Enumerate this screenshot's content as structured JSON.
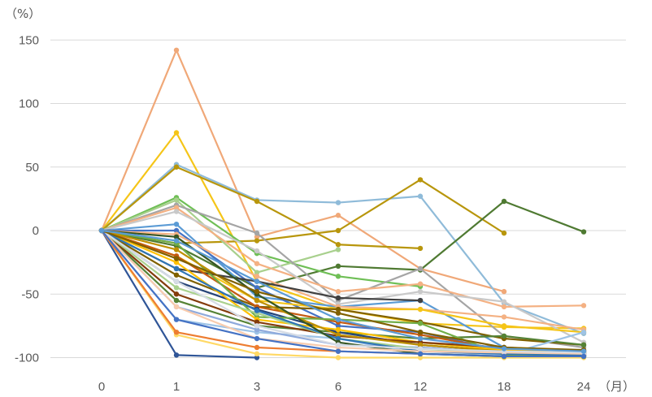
{
  "chart_data": {
    "type": "line",
    "title": "",
    "ylabel": "（%）",
    "xlabel": "（月）",
    "x": [
      "0",
      "1",
      "3",
      "6",
      "12",
      "18",
      "24"
    ],
    "yticks": [
      150,
      100,
      50,
      0,
      -50,
      -100
    ],
    "ylim": [
      -105,
      160
    ],
    "grid": true,
    "legend": "none",
    "series": [
      {
        "color": "#f0a878",
        "values": [
          0,
          142,
          -5,
          12,
          -30,
          -48,
          null
        ]
      },
      {
        "color": "#f5c518",
        "values": [
          0,
          77,
          -40,
          -62,
          -73,
          -76,
          -77
        ]
      },
      {
        "color": "#8fbbd9",
        "values": [
          0,
          52,
          24,
          22,
          27,
          -57,
          -81
        ]
      },
      {
        "color": "#b8960c",
        "values": [
          0,
          50,
          23,
          -11,
          -14,
          null,
          null
        ]
      },
      {
        "color": "#b8960c",
        "values": [
          0,
          -10,
          -8,
          0,
          40,
          -2,
          null
        ]
      },
      {
        "color": "#4f7a32",
        "values": [
          0,
          -12,
          -45,
          -28,
          -31,
          23,
          -1
        ]
      },
      {
        "color": "#6fbf56",
        "values": [
          0,
          26,
          -18,
          -36,
          -44,
          null,
          null
        ]
      },
      {
        "color": "#a8d08d",
        "values": [
          0,
          24,
          -33,
          -15,
          null,
          null,
          null
        ]
      },
      {
        "color": "#a5a5a5",
        "values": [
          0,
          20,
          -2,
          -55,
          -30,
          -83,
          -92
        ]
      },
      {
        "color": "#f4b183",
        "values": [
          0,
          18,
          -26,
          -48,
          -42,
          -60,
          -59
        ]
      },
      {
        "color": "#c9c9c9",
        "values": [
          0,
          15,
          -16,
          -58,
          -48,
          -56,
          -88
        ]
      },
      {
        "color": "#5b9bd5",
        "values": [
          0,
          5,
          -52,
          -60,
          -55,
          -92,
          -95
        ]
      },
      {
        "color": "#4472c4",
        "values": [
          0,
          0,
          -45,
          -75,
          -80,
          -95,
          -97
        ]
      },
      {
        "color": "#f4b183",
        "values": [
          0,
          -3,
          -36,
          -60,
          -62,
          -68,
          -78
        ]
      },
      {
        "color": "#f5c518",
        "values": [
          0,
          -20,
          -55,
          -62,
          -62,
          -75,
          -80
        ]
      },
      {
        "color": "#404040",
        "values": [
          0,
          -30,
          -40,
          -53,
          -55,
          null,
          null
        ]
      },
      {
        "color": "#7f6000",
        "values": [
          0,
          -35,
          -60,
          -62,
          -72,
          -85,
          -90
        ]
      },
      {
        "color": "#2f5597",
        "values": [
          0,
          -98,
          -100,
          null,
          null,
          null,
          null
        ]
      },
      {
        "color": "#ffd966",
        "values": [
          0,
          -82,
          -97,
          -100,
          -100,
          -100,
          -100
        ]
      },
      {
        "color": "#ed7d31",
        "values": [
          0,
          -80,
          -92,
          -95,
          -97,
          -98,
          -98
        ]
      },
      {
        "color": "#548235",
        "values": [
          0,
          -55,
          -75,
          -80,
          -85,
          -83,
          -90
        ]
      },
      {
        "color": "#9dc3e6",
        "values": [
          0,
          -70,
          -80,
          -85,
          -97,
          -98,
          -80
        ]
      },
      {
        "color": "#c55a11",
        "values": [
          0,
          -20,
          -60,
          -72,
          -82,
          -94,
          -96
        ]
      },
      {
        "color": "#264478",
        "values": [
          0,
          -40,
          -62,
          -80,
          -90,
          -95,
          -97
        ]
      },
      {
        "color": "#70ad47",
        "values": [
          0,
          -10,
          -68,
          -70,
          -73,
          -98,
          -99
        ]
      },
      {
        "color": "#ffc000",
        "values": [
          0,
          -25,
          -70,
          -78,
          -88,
          -94,
          -96
        ]
      },
      {
        "color": "#843c0c",
        "values": [
          0,
          -50,
          -72,
          -83,
          -88,
          -92,
          -95
        ]
      },
      {
        "color": "#8faadc",
        "values": [
          0,
          -60,
          -78,
          -90,
          -92,
          -96,
          -96
        ]
      },
      {
        "color": "#a9d18e",
        "values": [
          0,
          -45,
          -65,
          -85,
          -93,
          -97,
          -98
        ]
      },
      {
        "color": "#bf9000",
        "values": [
          0,
          -15,
          -55,
          -82,
          -90,
          -95,
          -96
        ]
      },
      {
        "color": "#2e75b6",
        "values": [
          0,
          -30,
          -63,
          -85,
          -95,
          -97,
          -98
        ]
      },
      {
        "color": "#375623",
        "values": [
          0,
          -5,
          -50,
          -88,
          -97,
          -99,
          -99
        ]
      },
      {
        "color": "#f8cbad",
        "values": [
          0,
          -60,
          -85,
          -92,
          -95,
          -96,
          -97
        ]
      },
      {
        "color": "#d6dce5",
        "values": [
          0,
          -40,
          -75,
          -90,
          -93,
          -95,
          -96
        ]
      },
      {
        "color": "#4472c4",
        "values": [
          0,
          -70,
          -85,
          -95,
          -97,
          -99,
          -99
        ]
      },
      {
        "color": "#806000",
        "values": [
          0,
          -22,
          -48,
          -65,
          -80,
          -92,
          -94
        ]
      },
      {
        "color": "#5b9bd5",
        "values": [
          0,
          -8,
          -40,
          -70,
          -85,
          -93,
          -95
        ]
      }
    ]
  }
}
